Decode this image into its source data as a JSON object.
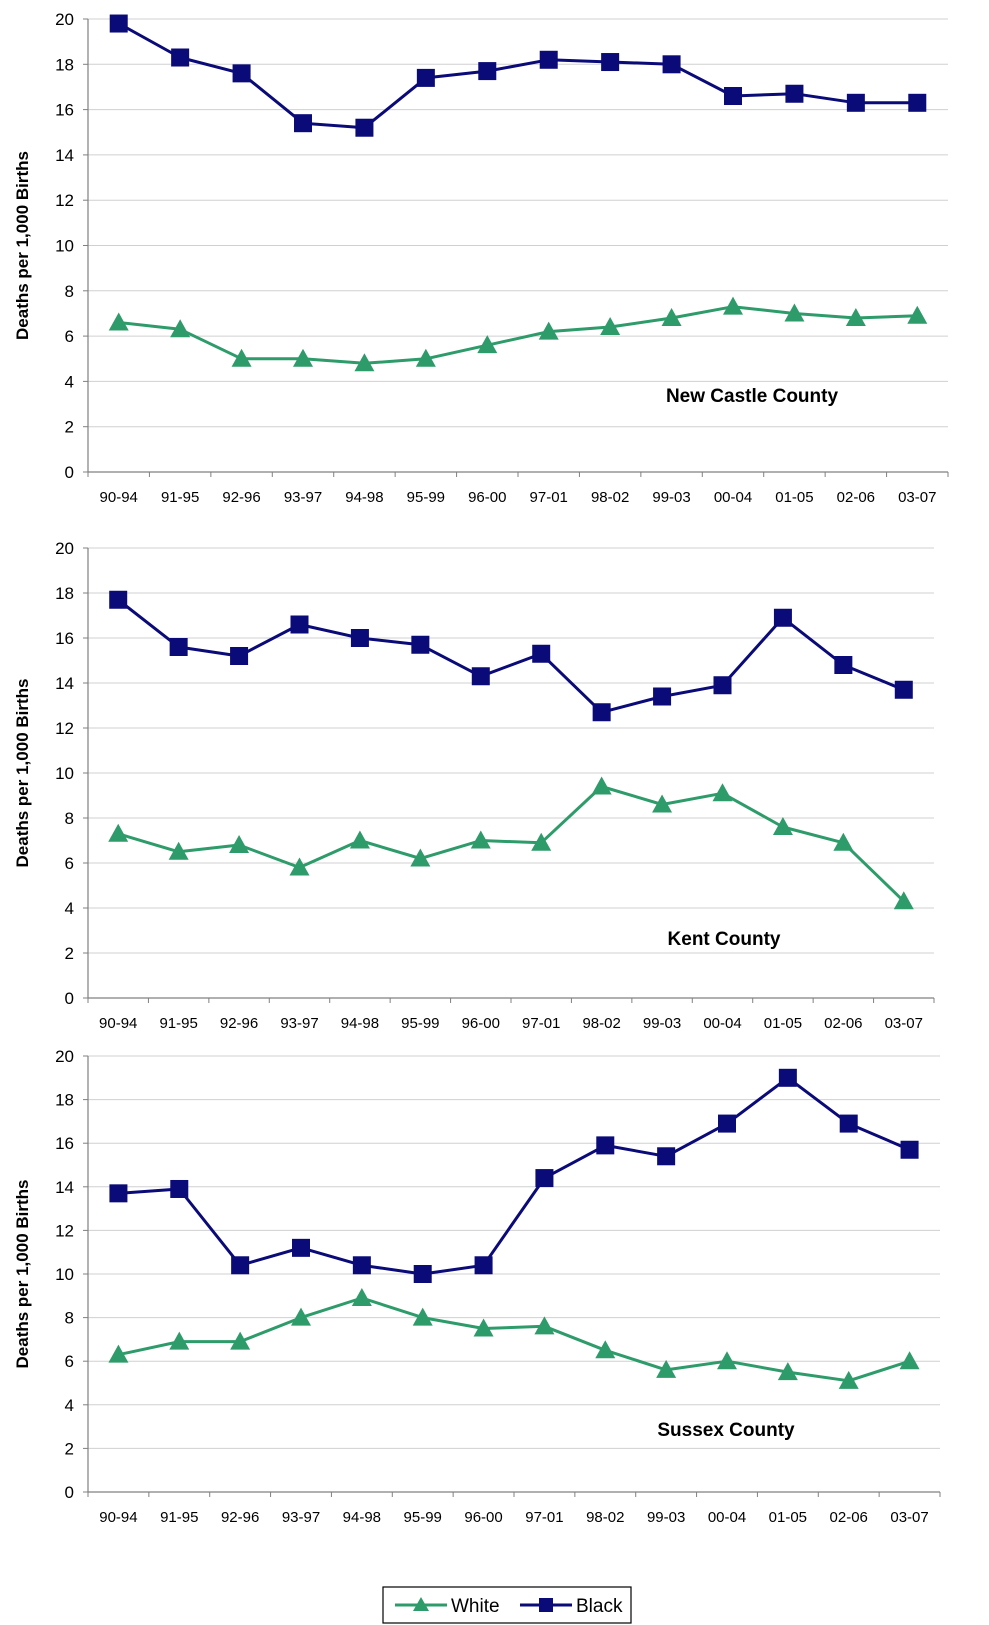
{
  "colors": {
    "white_series": "#2e9b6a",
    "black_series": "#0a0a78",
    "grid": "#d0d0d0",
    "axis": "#808080"
  },
  "legend": {
    "items": [
      {
        "name": "White",
        "marker": "triangle"
      },
      {
        "name": "Black",
        "marker": "square"
      }
    ]
  },
  "chart_data": [
    {
      "type": "line",
      "annotation": "New Castle County",
      "ylabel": "Deaths per 1,000 Births",
      "xlabel": "",
      "ylim": [
        0,
        20
      ],
      "yticks": [
        0,
        2,
        4,
        6,
        8,
        10,
        12,
        14,
        16,
        18,
        20
      ],
      "grid": true,
      "categories": [
        "90-94",
        "91-95",
        "92-96",
        "93-97",
        "94-98",
        "95-99",
        "96-00",
        "97-01",
        "98-02",
        "99-03",
        "00-04",
        "01-05",
        "02-06",
        "03-07"
      ],
      "series": [
        {
          "name": "White",
          "values": [
            6.6,
            6.3,
            5.0,
            5.0,
            4.8,
            5.0,
            5.6,
            6.2,
            6.4,
            6.8,
            7.3,
            7.0,
            6.8,
            6.9
          ]
        },
        {
          "name": "Black",
          "values": [
            19.8,
            18.3,
            17.6,
            15.4,
            15.2,
            17.4,
            17.7,
            18.2,
            18.1,
            18.0,
            16.6,
            16.7,
            16.3,
            16.3
          ]
        }
      ]
    },
    {
      "type": "line",
      "annotation": "Kent County",
      "ylabel": "Deaths per 1,000 Births",
      "xlabel": "",
      "ylim": [
        0,
        20
      ],
      "yticks": [
        0,
        2,
        4,
        6,
        8,
        10,
        12,
        14,
        16,
        18,
        20
      ],
      "grid": true,
      "categories": [
        "90-94",
        "91-95",
        "92-96",
        "93-97",
        "94-98",
        "95-99",
        "96-00",
        "97-01",
        "98-02",
        "99-03",
        "00-04",
        "01-05",
        "02-06",
        "03-07"
      ],
      "series": [
        {
          "name": "White",
          "values": [
            7.3,
            6.5,
            6.8,
            5.8,
            7.0,
            6.2,
            7.0,
            6.9,
            9.4,
            8.6,
            9.1,
            7.6,
            6.9,
            4.3
          ]
        },
        {
          "name": "Black",
          "values": [
            17.7,
            15.6,
            15.2,
            16.6,
            16.0,
            15.7,
            14.3,
            15.3,
            12.7,
            13.4,
            13.9,
            16.9,
            14.8,
            13.7
          ]
        }
      ]
    },
    {
      "type": "line",
      "annotation": "Sussex County",
      "ylabel": "Deaths per 1,000 Births",
      "xlabel": "",
      "ylim": [
        0,
        20
      ],
      "yticks": [
        0,
        2,
        4,
        6,
        8,
        10,
        12,
        14,
        16,
        18,
        20
      ],
      "grid": true,
      "categories": [
        "90-94",
        "91-95",
        "92-96",
        "93-97",
        "94-98",
        "95-99",
        "96-00",
        "97-01",
        "98-02",
        "99-03",
        "00-04",
        "01-05",
        "02-06",
        "03-07"
      ],
      "series": [
        {
          "name": "White",
          "values": [
            6.3,
            6.9,
            6.9,
            8.0,
            8.9,
            8.0,
            7.5,
            7.6,
            6.5,
            5.6,
            6.0,
            5.5,
            5.1,
            6.0
          ]
        },
        {
          "name": "Black",
          "values": [
            13.7,
            13.9,
            10.4,
            11.2,
            10.4,
            10.0,
            10.4,
            14.4,
            15.9,
            15.4,
            16.9,
            19.0,
            16.9,
            15.7
          ]
        }
      ]
    }
  ]
}
